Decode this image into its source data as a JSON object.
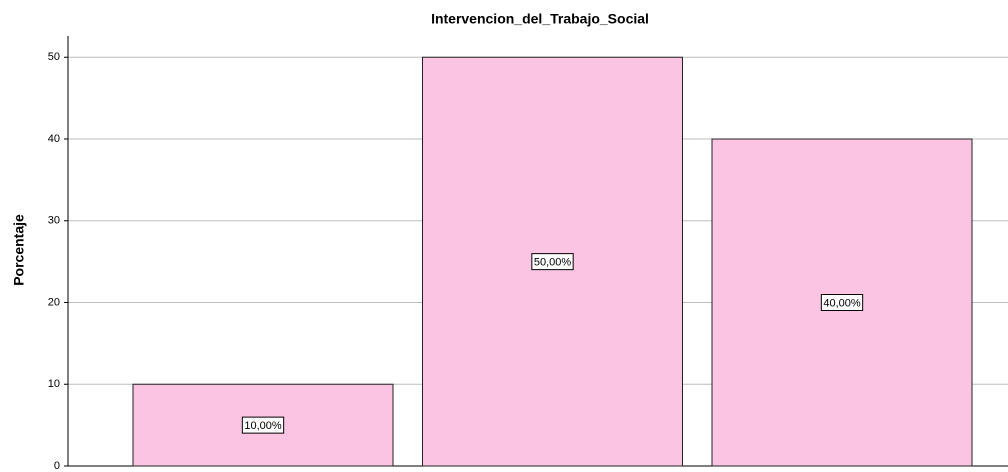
{
  "chart_data": {
    "type": "bar",
    "title": "Intervencion_del_Trabajo_Social",
    "y_label": "Porcentaje",
    "categories": [
      null,
      null,
      null
    ],
    "values": [
      10,
      50,
      40
    ],
    "value_labels": [
      "10,00%",
      "50,00%",
      "40,00%"
    ],
    "color": "#fbc4e3",
    "ylim": [
      0,
      52.6
    ],
    "yticks": [
      0,
      10,
      20,
      30,
      40,
      50
    ],
    "grid": true
  }
}
